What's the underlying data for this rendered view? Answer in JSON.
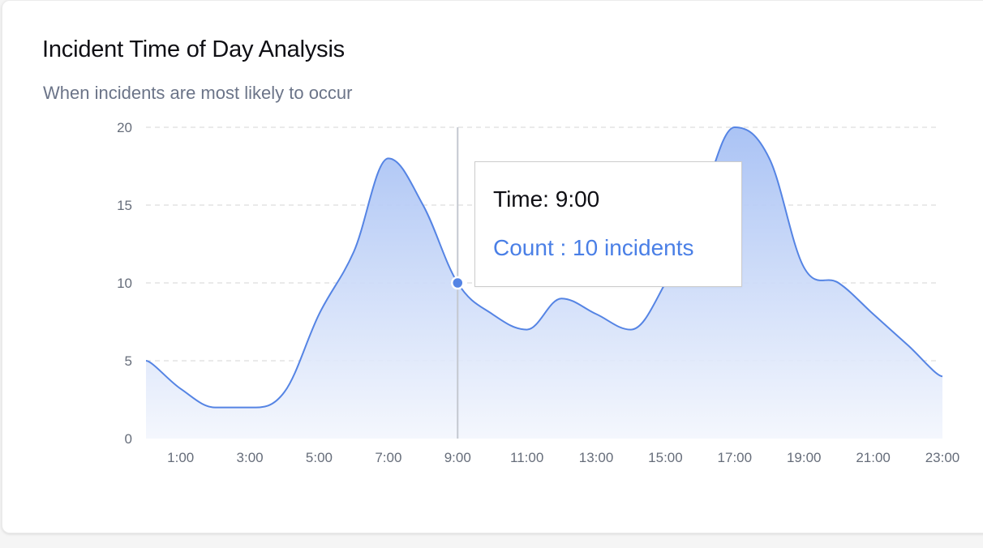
{
  "header": {
    "title": "Incident Time of Day Analysis",
    "subtitle": "When incidents are most likely to occur"
  },
  "colors": {
    "line": "#5584e4",
    "fill_top": "#a6c0f4",
    "fill_bottom": "#f3f6fd",
    "grid": "#dedede",
    "cursor": "#c4c8d0",
    "tooltip_value": "#4a7fe6"
  },
  "tooltip": {
    "time_label": "Time: 9:00",
    "count_label": "Count : 10 incidents"
  },
  "chart_data": {
    "type": "area",
    "title": "Incident Time of Day Analysis",
    "subtitle": "When incidents are most likely to occur",
    "x": [
      0,
      1,
      2,
      3,
      4,
      5,
      6,
      7,
      8,
      9,
      10,
      11,
      12,
      13,
      14,
      15,
      16,
      17,
      18,
      19,
      20,
      21,
      22,
      23
    ],
    "x_tick_labels": [
      "1:00",
      "3:00",
      "5:00",
      "7:00",
      "9:00",
      "11:00",
      "13:00",
      "15:00",
      "17:00",
      "19:00",
      "21:00",
      "23:00"
    ],
    "x_tick_values": [
      1,
      3,
      5,
      7,
      9,
      11,
      13,
      15,
      17,
      19,
      21,
      23
    ],
    "series": [
      {
        "values": [
          5,
          3.2,
          2,
          2,
          3,
          8,
          12,
          18,
          15,
          10,
          8,
          7,
          9,
          8,
          7,
          10,
          15,
          20,
          18,
          11,
          10,
          8,
          6,
          4
        ]
      }
    ],
    "ylim": [
      0,
      20
    ],
    "y_ticks": [
      0,
      5,
      10,
      15,
      20
    ],
    "xlim": [
      0,
      23
    ],
    "grid": true,
    "highlight": {
      "x": 9,
      "y": 10
    }
  }
}
